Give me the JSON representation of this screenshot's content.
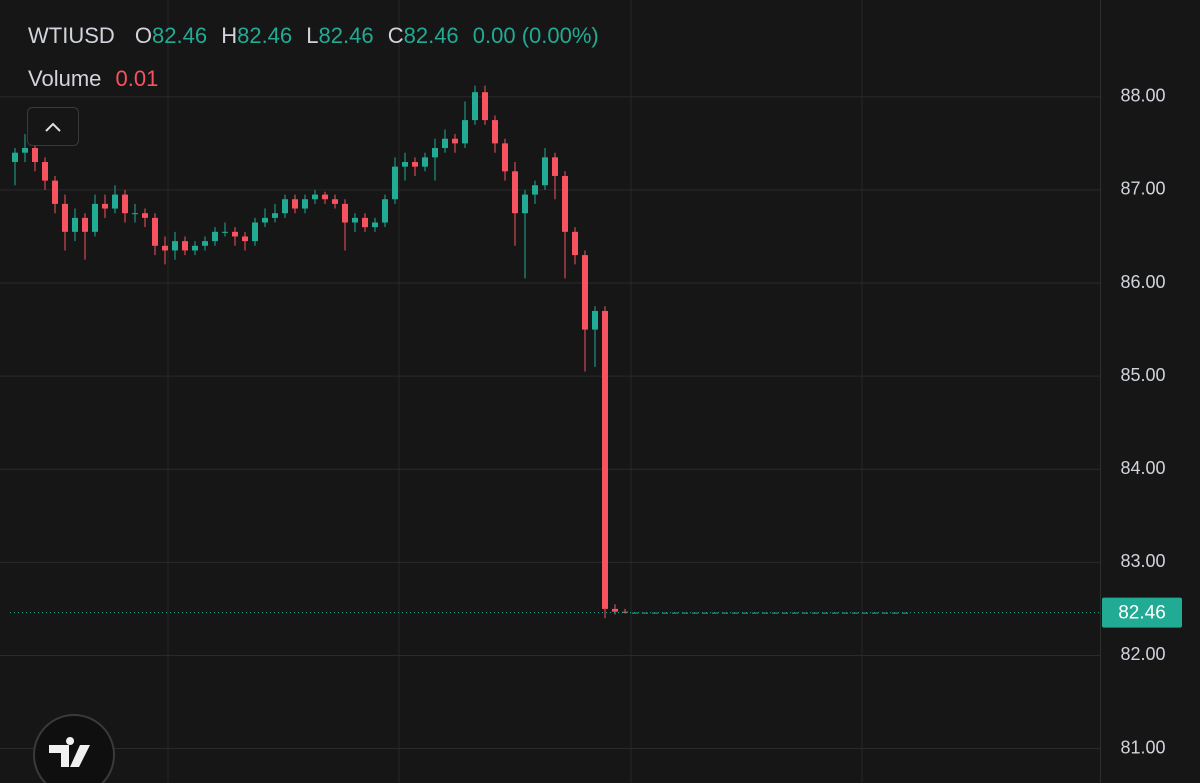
{
  "chart_data": {
    "type": "candlestick",
    "symbol": "WTIUSD",
    "ohlc_labels": [
      "O",
      "H",
      "L",
      "C"
    ],
    "ohlc_values": [
      82.46,
      82.46,
      82.46,
      82.46
    ],
    "change": "0.00 (0.00%)",
    "volume_label": "Volume",
    "volume_value": 0.01,
    "last_price": 82.46,
    "up_color": "#22ab94",
    "down_color": "#f7525f",
    "grid": true,
    "ylim": [
      80.63,
      89.04
    ],
    "yticks": [
      {
        "value": 81,
        "label": "81.00"
      },
      {
        "value": 82,
        "label": "82.00"
      },
      {
        "value": 83,
        "label": "83.00"
      },
      {
        "value": 84,
        "label": "84.00"
      },
      {
        "value": 85,
        "label": "85.00"
      },
      {
        "value": 86,
        "label": "86.00"
      },
      {
        "value": 87,
        "label": "87.00"
      },
      {
        "value": 88,
        "label": "88.00"
      }
    ],
    "values": [
      [
        87.3,
        87.45,
        87.05,
        87.4
      ],
      [
        87.4,
        87.6,
        87.3,
        87.45
      ],
      [
        87.45,
        87.5,
        87.2,
        87.3
      ],
      [
        87.3,
        87.35,
        87.0,
        87.1
      ],
      [
        87.1,
        87.15,
        86.75,
        86.85
      ],
      [
        86.85,
        86.95,
        86.35,
        86.55
      ],
      [
        86.55,
        86.8,
        86.45,
        86.7
      ],
      [
        86.7,
        86.75,
        86.25,
        86.55
      ],
      [
        86.55,
        86.95,
        86.5,
        86.85
      ],
      [
        86.85,
        86.95,
        86.7,
        86.8
      ],
      [
        86.8,
        87.05,
        86.75,
        86.95
      ],
      [
        86.95,
        87.0,
        86.65,
        86.75
      ],
      [
        86.75,
        86.85,
        86.65,
        86.75
      ],
      [
        86.75,
        86.8,
        86.6,
        86.7
      ],
      [
        86.7,
        86.75,
        86.3,
        86.4
      ],
      [
        86.4,
        86.5,
        86.2,
        86.35
      ],
      [
        86.35,
        86.55,
        86.25,
        86.45
      ],
      [
        86.45,
        86.5,
        86.3,
        86.35
      ],
      [
        86.35,
        86.45,
        86.3,
        86.4
      ],
      [
        86.4,
        86.5,
        86.35,
        86.45
      ],
      [
        86.45,
        86.6,
        86.4,
        86.55
      ],
      [
        86.55,
        86.65,
        86.5,
        86.55
      ],
      [
        86.55,
        86.6,
        86.4,
        86.5
      ],
      [
        86.5,
        86.55,
        86.35,
        86.45
      ],
      [
        86.45,
        86.7,
        86.4,
        86.65
      ],
      [
        86.65,
        86.8,
        86.6,
        86.7
      ],
      [
        86.7,
        86.85,
        86.65,
        86.75
      ],
      [
        86.75,
        86.95,
        86.7,
        86.9
      ],
      [
        86.9,
        86.95,
        86.75,
        86.8
      ],
      [
        86.8,
        86.95,
        86.75,
        86.9
      ],
      [
        86.9,
        87.0,
        86.85,
        86.95
      ],
      [
        86.95,
        86.98,
        86.85,
        86.9
      ],
      [
        86.9,
        86.95,
        86.8,
        86.85
      ],
      [
        86.85,
        86.9,
        86.35,
        86.65
      ],
      [
        86.65,
        86.75,
        86.55,
        86.7
      ],
      [
        86.7,
        86.75,
        86.55,
        86.6
      ],
      [
        86.6,
        86.7,
        86.55,
        86.65
      ],
      [
        86.65,
        86.95,
        86.6,
        86.9
      ],
      [
        86.9,
        87.35,
        86.85,
        87.25
      ],
      [
        87.25,
        87.4,
        87.1,
        87.3
      ],
      [
        87.3,
        87.35,
        87.15,
        87.25
      ],
      [
        87.25,
        87.4,
        87.2,
        87.35
      ],
      [
        87.35,
        87.55,
        87.1,
        87.45
      ],
      [
        87.45,
        87.65,
        87.4,
        87.55
      ],
      [
        87.55,
        87.6,
        87.4,
        87.5
      ],
      [
        87.5,
        87.95,
        87.45,
        87.75
      ],
      [
        87.75,
        88.12,
        87.7,
        88.05
      ],
      [
        88.05,
        88.12,
        87.7,
        87.75
      ],
      [
        87.75,
        87.8,
        87.4,
        87.5
      ],
      [
        87.5,
        87.55,
        87.1,
        87.2
      ],
      [
        87.2,
        87.3,
        86.4,
        86.75
      ],
      [
        86.75,
        87.0,
        86.05,
        86.95
      ],
      [
        86.95,
        87.1,
        86.85,
        87.05
      ],
      [
        87.05,
        87.45,
        87.0,
        87.35
      ],
      [
        87.35,
        87.4,
        86.9,
        87.15
      ],
      [
        87.15,
        87.2,
        86.05,
        86.55
      ],
      [
        86.55,
        86.6,
        86.2,
        86.3
      ],
      [
        86.3,
        86.35,
        85.05,
        85.5
      ],
      [
        85.5,
        85.75,
        85.1,
        85.7
      ],
      [
        85.7,
        85.75,
        82.4,
        82.5
      ],
      [
        82.5,
        82.55,
        82.44,
        82.47
      ],
      [
        82.47,
        82.5,
        82.45,
        82.46
      ],
      [
        82.46,
        82.46,
        82.46,
        82.46
      ],
      [
        82.46,
        82.46,
        82.46,
        82.46
      ],
      [
        82.46,
        82.46,
        82.46,
        82.46
      ],
      [
        82.46,
        82.46,
        82.46,
        82.46
      ],
      [
        82.46,
        82.46,
        82.46,
        82.46
      ],
      [
        82.46,
        82.46,
        82.46,
        82.46
      ],
      [
        82.46,
        82.46,
        82.46,
        82.46
      ],
      [
        82.46,
        82.46,
        82.46,
        82.46
      ],
      [
        82.46,
        82.46,
        82.46,
        82.46
      ],
      [
        82.46,
        82.46,
        82.46,
        82.46
      ],
      [
        82.46,
        82.46,
        82.46,
        82.46
      ],
      [
        82.46,
        82.46,
        82.46,
        82.46
      ],
      [
        82.46,
        82.46,
        82.46,
        82.46
      ],
      [
        82.46,
        82.46,
        82.46,
        82.46
      ],
      [
        82.46,
        82.46,
        82.46,
        82.46
      ],
      [
        82.46,
        82.46,
        82.46,
        82.46
      ],
      [
        82.46,
        82.46,
        82.46,
        82.46
      ],
      [
        82.46,
        82.46,
        82.46,
        82.46
      ],
      [
        82.46,
        82.46,
        82.46,
        82.46
      ],
      [
        82.46,
        82.46,
        82.46,
        82.46
      ],
      [
        82.46,
        82.46,
        82.46,
        82.46
      ],
      [
        82.46,
        82.46,
        82.46,
        82.46
      ],
      [
        82.46,
        82.46,
        82.46,
        82.46
      ],
      [
        82.46,
        82.46,
        82.46,
        82.46
      ],
      [
        82.46,
        82.46,
        82.46,
        82.46
      ],
      [
        82.46,
        82.46,
        82.46,
        82.46
      ],
      [
        82.46,
        82.46,
        82.46,
        82.46
      ],
      [
        82.46,
        82.46,
        82.46,
        82.46
      ]
    ]
  }
}
